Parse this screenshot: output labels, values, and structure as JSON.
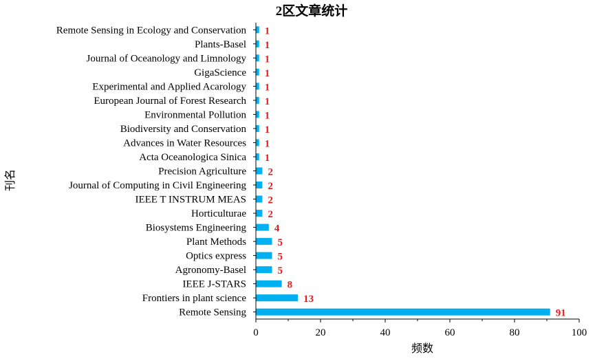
{
  "chart_data": {
    "type": "bar",
    "orientation": "horizontal",
    "title": "2区文章统计",
    "xlabel": "频数",
    "ylabel": "刊名",
    "xlim": [
      0,
      100
    ],
    "x_ticks": [
      0,
      20,
      40,
      60,
      80,
      100
    ],
    "grid": false,
    "legend": "none",
    "bar_color": "#00b0f0",
    "value_label_color": "#e31a1c",
    "categories": [
      "Remote Sensing in Ecology and Conservation",
      "Plants-Basel",
      "Journal of Oceanology and Limnology",
      "GigaScience",
      "Experimental and Applied Acarology",
      "European Journal of Forest Research",
      "Environmental Pollution",
      "Biodiversity and Conservation",
      "Advances in Water Resources",
      "Acta Oceanologica Sinica",
      "Precision Agriculture",
      "Journal of Computing in Civil Engineering",
      "IEEE T INSTRUM MEAS",
      "Horticulturae",
      "Biosystems Engineering",
      "Plant Methods",
      "Optics express",
      "Agronomy-Basel",
      "IEEE J-STARS",
      "Frontiers in plant science",
      "Remote Sensing"
    ],
    "values": [
      1,
      1,
      1,
      1,
      1,
      1,
      1,
      1,
      1,
      1,
      2,
      2,
      2,
      2,
      4,
      5,
      5,
      5,
      8,
      13,
      91
    ]
  }
}
